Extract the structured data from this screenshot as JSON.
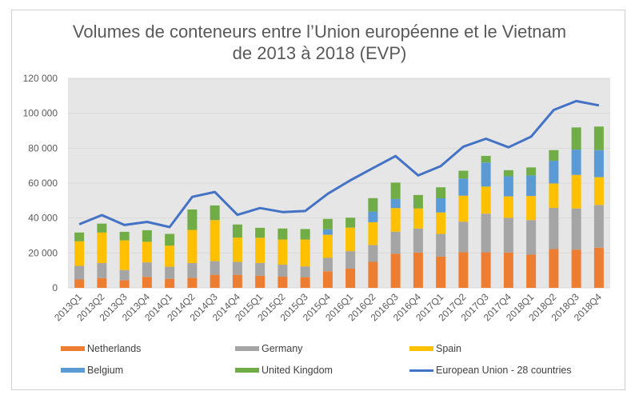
{
  "chart_data": {
    "type": "bar",
    "subtype": "stacked-bar-with-line",
    "title": "Volumes de conteneurs entre l’Union européenne et le Vietnam",
    "subtitle": "de 2013 à 2018 (EVP)",
    "xlabel": "",
    "ylabel": "",
    "ylim": [
      0,
      120000
    ],
    "yticks": [
      0,
      20000,
      40000,
      60000,
      80000,
      100000,
      120000
    ],
    "ytick_labels": [
      "0",
      "20 000",
      "40 000",
      "60 000",
      "80 000",
      "100 000",
      "120 000"
    ],
    "grid": true,
    "legend_position": "bottom",
    "categories": [
      "2013Q1",
      "2013Q2",
      "2013Q3",
      "2013Q4",
      "2014Q1",
      "2014Q2",
      "2014Q3",
      "2014Q4",
      "2015Q1",
      "2015Q2",
      "2015Q3",
      "2015Q4",
      "2016Q1",
      "2016Q2",
      "2016Q3",
      "2016Q4",
      "2017Q1",
      "2017Q2",
      "2017Q3",
      "2017Q4",
      "2018Q1",
      "2018Q2",
      "2018Q3",
      "2018Q4"
    ],
    "series": [
      {
        "name": "Netherlands",
        "type": "bar",
        "color": "#ED7D31",
        "values": [
          4800,
          5600,
          4400,
          6300,
          5200,
          5800,
          7500,
          7500,
          6900,
          6400,
          6100,
          9500,
          11000,
          14900,
          19600,
          20200,
          17900,
          20400,
          20400,
          20200,
          19000,
          22200,
          21900,
          23000
        ]
      },
      {
        "name": "Germany",
        "type": "bar",
        "color": "#A5A5A5",
        "values": [
          7800,
          8600,
          5800,
          8300,
          6900,
          8400,
          7800,
          7400,
          7400,
          6900,
          6200,
          7700,
          10000,
          9600,
          12600,
          13800,
          13000,
          17500,
          22100,
          19900,
          19800,
          23600,
          23600,
          24500
        ]
      },
      {
        "name": "Spain",
        "type": "bar",
        "color": "#FFC000",
        "values": [
          14100,
          17500,
          17000,
          11800,
          12100,
          19000,
          23500,
          13900,
          14400,
          14400,
          15400,
          13200,
          13500,
          13100,
          13500,
          11500,
          12300,
          14900,
          15500,
          12300,
          13800,
          14000,
          19200,
          15900
        ]
      },
      {
        "name": "Belgium",
        "type": "bar",
        "color": "#5B9BD5",
        "values": [
          0,
          0,
          0,
          0,
          0,
          0,
          0,
          0,
          0,
          0,
          0,
          3100,
          0,
          6100,
          5200,
          0,
          8100,
          9800,
          13800,
          11500,
          11800,
          13000,
          14500,
          15500
        ]
      },
      {
        "name": "United Kingdom",
        "type": "bar",
        "color": "#70AD47",
        "values": [
          5000,
          5100,
          4900,
          6600,
          6700,
          11700,
          8400,
          7500,
          5700,
          6300,
          6000,
          6000,
          5700,
          7700,
          9400,
          7700,
          6300,
          4500,
          3800,
          3500,
          4600,
          6100,
          12700,
          13500
        ]
      },
      {
        "name": "European Union - 28 countries",
        "type": "line",
        "color": "#4472C4",
        "values": [
          36400,
          41700,
          36000,
          37800,
          34800,
          52100,
          54900,
          41800,
          45700,
          43400,
          44000,
          53900,
          61600,
          68600,
          75500,
          64400,
          69700,
          80900,
          85400,
          80500,
          86600,
          101900,
          107000,
          104500
        ]
      }
    ]
  },
  "legend": [
    {
      "label": "Netherlands",
      "color": "#ED7D31",
      "kind": "bar"
    },
    {
      "label": "Germany",
      "color": "#A5A5A5",
      "kind": "bar"
    },
    {
      "label": "Spain",
      "color": "#FFC000",
      "kind": "bar"
    },
    {
      "label": "Belgium",
      "color": "#5B9BD5",
      "kind": "bar"
    },
    {
      "label": "United Kingdom",
      "color": "#70AD47",
      "kind": "bar"
    },
    {
      "label": "European Union - 28 countries",
      "color": "#4472C4",
      "kind": "line"
    }
  ],
  "colors": {
    "plot_background": "#E7E6E6",
    "gridline": "#D9D9D9",
    "text": "#595959"
  }
}
